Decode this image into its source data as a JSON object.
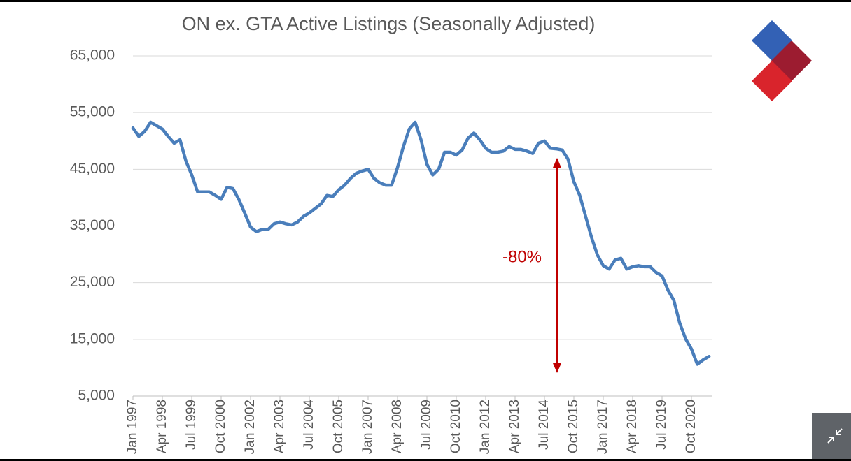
{
  "chart_data": {
    "type": "line",
    "title": "ON ex. GTA Active Listings (Seasonally Adjusted)",
    "categories": [
      "Jan 1997",
      null,
      null,
      null,
      null,
      "Apr 1998",
      null,
      null,
      null,
      null,
      "Jul 1999",
      null,
      null,
      null,
      null,
      "Oct 2000",
      null,
      null,
      null,
      null,
      "Jan 2002",
      null,
      null,
      null,
      null,
      "Apr 2003",
      null,
      null,
      null,
      null,
      "Jul 2004",
      null,
      null,
      null,
      null,
      "Oct 2005",
      null,
      null,
      null,
      null,
      "Jan 2007",
      null,
      null,
      null,
      null,
      "Apr 2008",
      null,
      null,
      null,
      null,
      "Jul 2009",
      null,
      null,
      null,
      null,
      "Oct 2010",
      null,
      null,
      null,
      null,
      "Jan 2012",
      null,
      null,
      null,
      null,
      "Apr 2013",
      null,
      null,
      null,
      null,
      "Jul 2014",
      null,
      null,
      null,
      null,
      "Oct 2015",
      null,
      null,
      null,
      null,
      "Jan 2017",
      null,
      null,
      null,
      null,
      "Apr 2018",
      null,
      null,
      null,
      null,
      "Jul 2019",
      null,
      null,
      null,
      null,
      "Oct 2020",
      null,
      null,
      null
    ],
    "series": [
      {
        "name": "Active Listings",
        "color": "#4a7ebb",
        "values": [
          52300,
          50800,
          51700,
          53300,
          52700,
          52100,
          50800,
          49600,
          50200,
          46500,
          44000,
          41000,
          41000,
          41000,
          40400,
          39700,
          41800,
          41600,
          39700,
          37300,
          34800,
          34000,
          34400,
          34400,
          35400,
          35700,
          35400,
          35200,
          35700,
          36700,
          37300,
          38100,
          38900,
          40400,
          40200,
          41400,
          42200,
          43400,
          44300,
          44700,
          45000,
          43400,
          42600,
          42200,
          42200,
          45300,
          49000,
          52100,
          53300,
          50200,
          45900,
          44000,
          45000,
          48000,
          48000,
          47500,
          48400,
          50500,
          51400,
          50200,
          48700,
          48000,
          48000,
          48200,
          49000,
          48500,
          48500,
          48200,
          47800,
          49600,
          50000,
          48700,
          48600,
          48400,
          46800,
          42800,
          40400,
          36700,
          33000,
          29900,
          28000,
          27400,
          29000,
          29300,
          27400,
          27800,
          28000,
          27800,
          27800,
          26800,
          26200,
          23700,
          21900,
          17900,
          15100,
          13300,
          10600,
          11400,
          12000
        ]
      }
    ],
    "ylim": [
      5000,
      65000
    ],
    "yticks": [
      {
        "value": 5000,
        "label": "5,000"
      },
      {
        "value": 15000,
        "label": "15,000"
      },
      {
        "value": 25000,
        "label": "25,000"
      },
      {
        "value": 35000,
        "label": "35,000"
      },
      {
        "value": 45000,
        "label": "45,000"
      },
      {
        "value": 55000,
        "label": "55,000"
      },
      {
        "value": 65000,
        "label": "65,000"
      }
    ],
    "grid": true,
    "annotation": "-80%"
  }
}
